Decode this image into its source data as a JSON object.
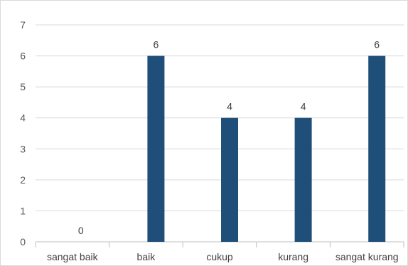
{
  "chart_data": {
    "type": "bar",
    "categories": [
      "sangat baik",
      "baik",
      "cukup",
      "kurang",
      "sangat kurang"
    ],
    "values": [
      0,
      6,
      4,
      4,
      6
    ],
    "ylim": [
      0,
      7
    ],
    "yticks": [
      0,
      1,
      2,
      3,
      4,
      5,
      6,
      7
    ],
    "grid": true,
    "data_labels": true,
    "colors": {
      "bar": "#1f4e79",
      "grid": "#d9d9d9",
      "axis": "#bfbfbf",
      "tick_text": "#595959",
      "label_text": "#404040"
    }
  }
}
